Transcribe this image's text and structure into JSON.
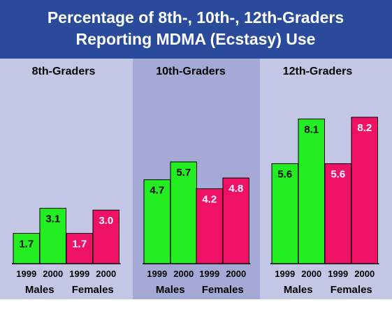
{
  "chart_data": {
    "type": "bar",
    "title": [
      "Percentage of 8th-, 10th-, 12th-Graders",
      "Reporting MDMA (Ecstasy) Use"
    ],
    "colors": {
      "males": "#22ee22",
      "females": "#ee1166",
      "title_bg": "#2a4b9b"
    },
    "panels": [
      {
        "grade": "8th-Graders",
        "groups": [
          {
            "name": "Males",
            "bars": [
              {
                "year": "1999",
                "value": 1.7,
                "label": "1.7"
              },
              {
                "year": "2000",
                "value": 3.1,
                "label": "3.1"
              }
            ]
          },
          {
            "name": "Females",
            "bars": [
              {
                "year": "1999",
                "value": 1.7,
                "label": "1.7"
              },
              {
                "year": "2000",
                "value": 3.0,
                "label": "3.0"
              }
            ]
          }
        ]
      },
      {
        "grade": "10th-Graders",
        "groups": [
          {
            "name": "Males",
            "bars": [
              {
                "year": "1999",
                "value": 4.7,
                "label": "4.7"
              },
              {
                "year": "2000",
                "value": 5.7,
                "label": "5.7"
              }
            ]
          },
          {
            "name": "Females",
            "bars": [
              {
                "year": "1999",
                "value": 4.2,
                "label": "4.2"
              },
              {
                "year": "2000",
                "value": 4.8,
                "label": "4.8"
              }
            ]
          }
        ]
      },
      {
        "grade": "12th-Graders",
        "groups": [
          {
            "name": "Males",
            "bars": [
              {
                "year": "1999",
                "value": 5.6,
                "label": "5.6"
              },
              {
                "year": "2000",
                "value": 8.1,
                "label": "8.1"
              }
            ]
          },
          {
            "name": "Females",
            "bars": [
              {
                "year": "1999",
                "value": 5.6,
                "label": "5.6"
              },
              {
                "year": "2000",
                "value": 8.2,
                "label": "8.2"
              }
            ]
          }
        ]
      }
    ]
  }
}
